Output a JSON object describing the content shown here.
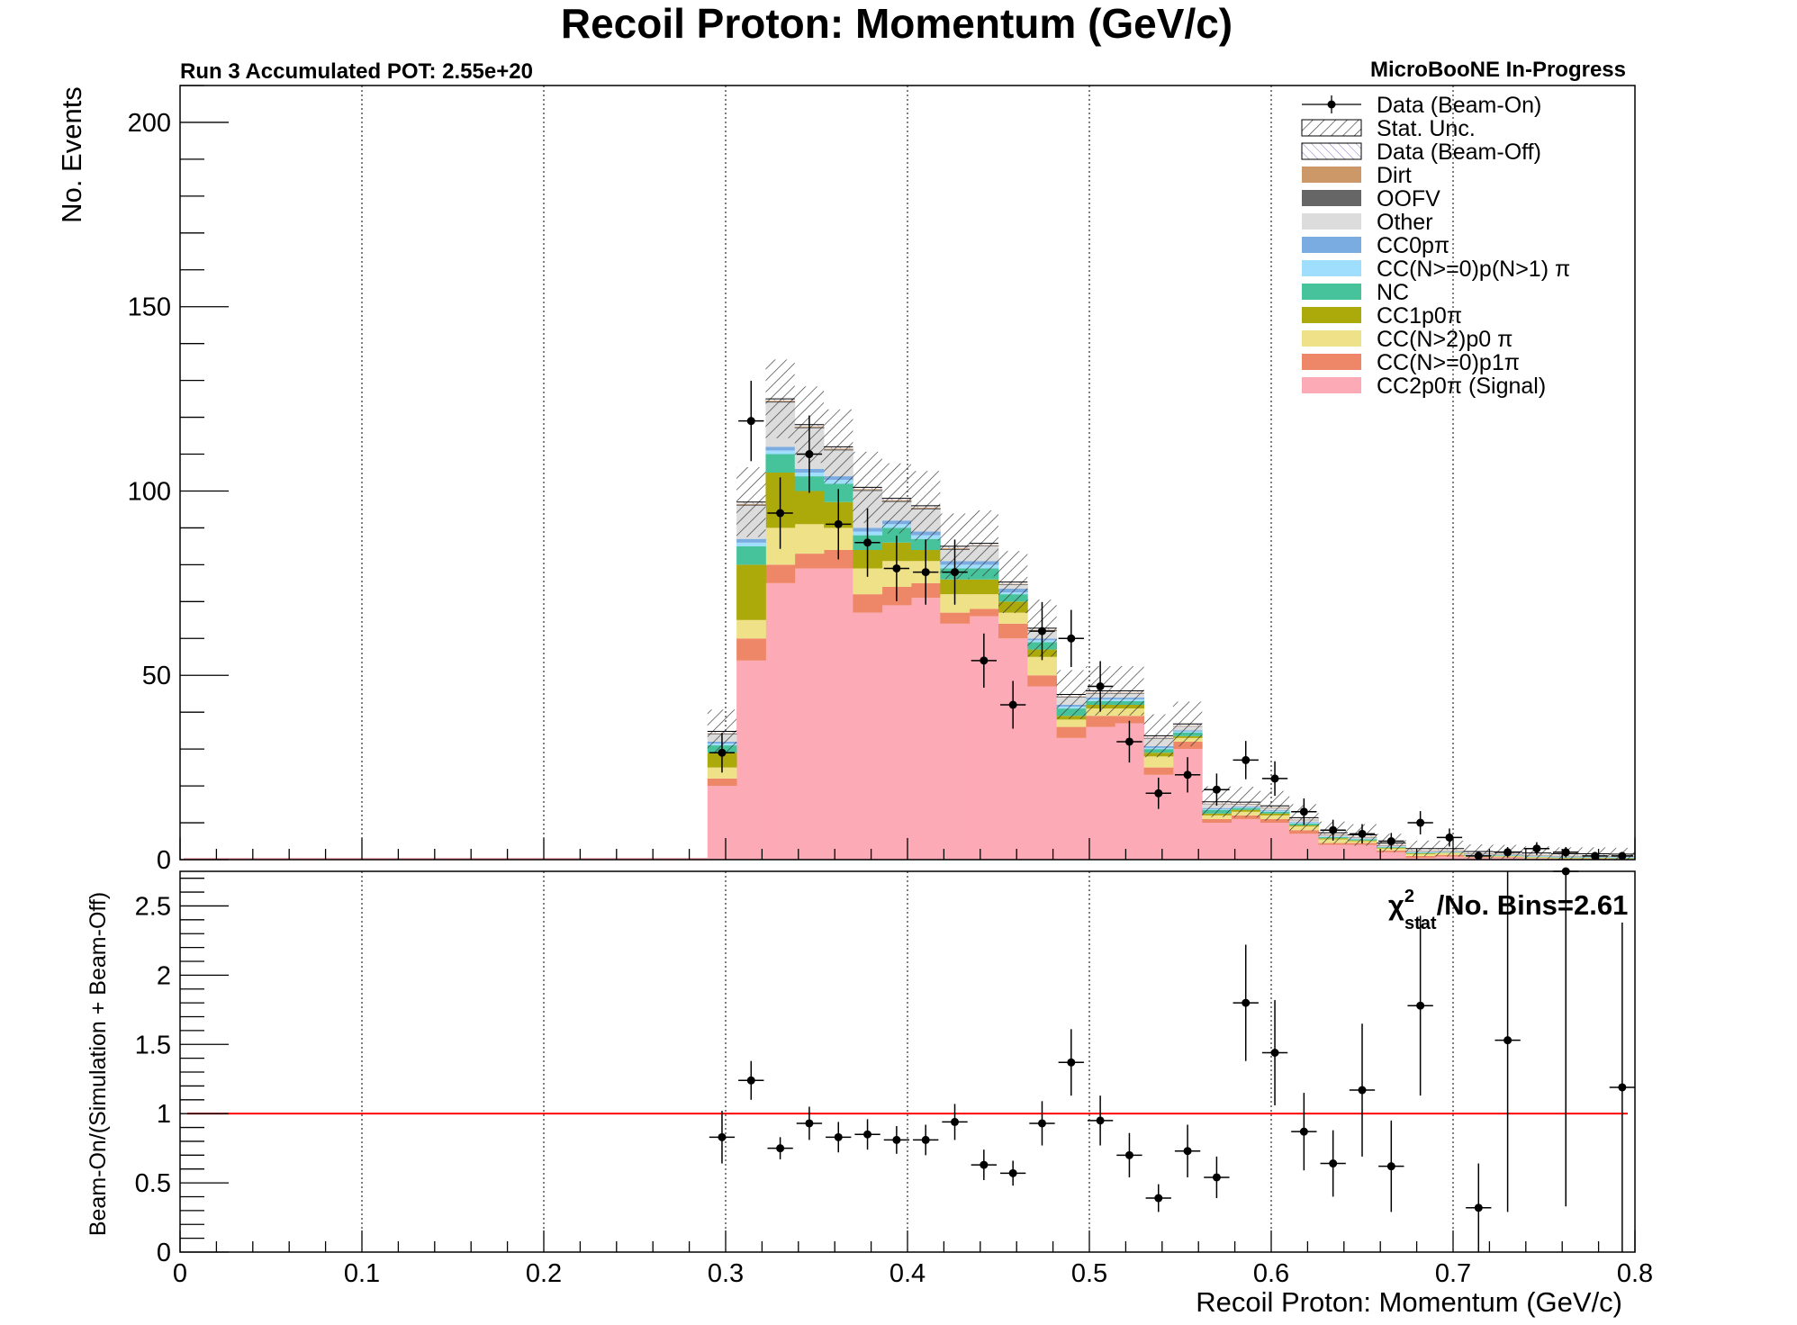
{
  "colors": {
    "signal": "#fdaab7",
    "cc_n0p1pi": "#ee8768",
    "cc_n2p0pi": "#eee187",
    "cc1p0pi": "#aca90a",
    "nc": "#47c39c",
    "cc_n0p_n1pi": "#9fdefd",
    "cc0ppi": "#7aabe1",
    "other": "#dcdcdc",
    "oofv": "#666666",
    "dirt": "#cd9868",
    "beam_off": "#b1a0d8",
    "data": "#000000",
    "unity_line": "#ff0000"
  },
  "header": {
    "title": "Recoil Proton: Momentum (GeV/c)",
    "run_label": "Run 3 Accumulated POT: 2.55e+20",
    "experiment_label": "MicroBooNE In-Progress"
  },
  "chi2": {
    "chi": "χ",
    "sup": "2",
    "sub": "stat",
    "text": "/No. Bins=2.61"
  },
  "legend": [
    {
      "label": "Data (Beam-On)",
      "style": "data"
    },
    {
      "label": "Stat. Unc.",
      "style": "hatch"
    },
    {
      "label": "Data (Beam-Off)",
      "style": "beamoff"
    },
    {
      "label": "Dirt",
      "style": "fill",
      "color_key": "dirt"
    },
    {
      "label": "OOFV",
      "style": "fill",
      "color_key": "oofv"
    },
    {
      "label": "Other",
      "style": "fill",
      "color_key": "other"
    },
    {
      "label": "CC0pπ",
      "style": "fill",
      "color_key": "cc0ppi"
    },
    {
      "label": "CC(N>=0)p(N>1) π",
      "style": "fill",
      "color_key": "cc_n0p_n1pi"
    },
    {
      "label": "NC",
      "style": "fill",
      "color_key": "nc"
    },
    {
      "label": "CC1p0π",
      "style": "fill",
      "color_key": "cc1p0pi"
    },
    {
      "label": "CC(N>2)p0 π",
      "style": "fill",
      "color_key": "cc_n2p0pi"
    },
    {
      "label": "CC(N>=0)p1π",
      "style": "fill",
      "color_key": "cc_n0p1pi"
    },
    {
      "label": "CC2p0π (Signal)",
      "style": "fill",
      "color_key": "signal"
    }
  ],
  "chart_data": [
    {
      "type": "bar",
      "stacked": true,
      "title": "Recoil Proton: Momentum (GeV/c)",
      "xlabel": "",
      "ylabel": "No. Events",
      "xlim": [
        0,
        0.8
      ],
      "ylim": [
        0,
        210
      ],
      "x_ticks": [
        0,
        0.1,
        0.2,
        0.3,
        0.4,
        0.5,
        0.6,
        0.7,
        0.8
      ],
      "y_ticks": [
        0,
        50,
        100,
        150,
        200
      ],
      "grid": "vertical dotted",
      "legend_position": "top-right",
      "bin_edges": [
        0.29,
        0.306,
        0.322,
        0.338,
        0.354,
        0.37,
        0.386,
        0.402,
        0.418,
        0.434,
        0.45,
        0.466,
        0.482,
        0.498,
        0.514,
        0.53,
        0.546,
        0.562,
        0.578,
        0.594,
        0.61,
        0.626,
        0.642,
        0.658,
        0.674,
        0.69,
        0.706,
        0.722,
        0.738,
        0.754,
        0.77,
        0.786,
        0.8
      ],
      "series": [
        {
          "name": "CC2p0π (Signal)",
          "color_key": "signal",
          "values": [
            20,
            54,
            75,
            79,
            79,
            67,
            69,
            71,
            64,
            66,
            60,
            47,
            33,
            36,
            37,
            23,
            30,
            10,
            11,
            10,
            7,
            4,
            4,
            2,
            0.5,
            0.8,
            0.5,
            0.5,
            0.3,
            0.2,
            0.2,
            0.1
          ]
        },
        {
          "name": "CC(N>=0)p1π",
          "color_key": "cc_n0p1pi",
          "values": [
            2,
            6,
            5,
            4,
            5,
            5,
            5,
            4,
            3,
            2,
            4,
            3,
            3,
            3,
            2,
            2,
            2,
            1,
            1,
            1,
            1,
            0.5,
            0.5,
            0.5,
            0.5,
            0.5,
            0.2,
            0.2,
            0.1,
            0.1,
            0.1,
            0.1
          ]
        },
        {
          "name": "CC(N>2)p0 π",
          "color_key": "cc_n2p0pi",
          "values": [
            3,
            5,
            10,
            8,
            6,
            7,
            7,
            6,
            5,
            4,
            3,
            5,
            2,
            2,
            2,
            3,
            1,
            1,
            1,
            1,
            1,
            1,
            0.5,
            0.5,
            0.5,
            0.5,
            0.3,
            0.2,
            0.2,
            0.1,
            0.1,
            0.1
          ]
        },
        {
          "name": "CC1p0π",
          "color_key": "cc1p0pi",
          "values": [
            4,
            15,
            15,
            9,
            7,
            5,
            5,
            3,
            4,
            4,
            3,
            2,
            1,
            1,
            1,
            1,
            0.5,
            0.5,
            0.5,
            0.5,
            0.3,
            0.3,
            0.2,
            0.2,
            0.2,
            0.1,
            0.1,
            0.1,
            0.1,
            0.1,
            0.1,
            0.1
          ]
        },
        {
          "name": "NC",
          "color_key": "nc",
          "values": [
            2,
            5,
            5,
            4,
            5,
            4,
            4,
            3,
            3,
            3,
            2,
            2,
            2,
            1,
            1,
            1,
            1,
            1,
            0.5,
            0.5,
            0.5,
            0.3,
            0.3,
            0.2,
            0.2,
            0.1,
            0.1,
            0.1,
            0.1,
            0.1,
            0.1,
            0.1
          ]
        },
        {
          "name": "CC(N>=0)p(N>1) π",
          "color_key": "cc_n0p_n1pi",
          "values": [
            0.5,
            1,
            1,
            1,
            1,
            1,
            1,
            1,
            1,
            1,
            0.5,
            0.5,
            0.5,
            0.5,
            0.5,
            0.3,
            0.3,
            0.2,
            0.2,
            0.2,
            0.2,
            0.1,
            0.1,
            0.1,
            0.1,
            0.1,
            0.1,
            0.1,
            0.1,
            0.1,
            0.1,
            0.1
          ]
        },
        {
          "name": "CC0pπ",
          "color_key": "cc0ppi",
          "values": [
            0.5,
            1,
            1,
            1,
            1,
            1,
            1,
            1,
            1,
            1,
            1,
            0.5,
            0.5,
            0.5,
            0.5,
            0.5,
            0.3,
            0.3,
            0.2,
            0.2,
            0.2,
            0.1,
            0.1,
            0.1,
            0.1,
            0.1,
            0.1,
            0.1,
            0.1,
            0.1,
            0.1,
            0.1
          ]
        },
        {
          "name": "Other",
          "color_key": "other",
          "values": [
            2,
            9,
            12,
            11,
            7,
            10,
            5,
            6,
            3,
            4,
            1,
            2,
            2,
            1,
            1,
            2,
            1,
            1,
            0.5,
            0.5,
            0.5,
            0.3,
            0.3,
            0.2,
            0.2,
            0.1,
            0.1,
            0.1,
            0.1,
            0.1,
            0.1,
            0.1
          ]
        },
        {
          "name": "OOFV",
          "color_key": "oofv",
          "values": [
            0.2,
            0.3,
            0.3,
            0.3,
            0.3,
            0.3,
            0.3,
            0.3,
            0.3,
            0.2,
            0.2,
            0.2,
            0.2,
            0.2,
            0.2,
            0.2,
            0.1,
            0.1,
            0.1,
            0.1,
            0.1,
            0.1,
            0.1,
            0.1,
            0.1,
            0.1,
            0.1,
            0.1,
            0.1,
            0.1,
            0.1,
            0.1
          ]
        },
        {
          "name": "Dirt",
          "color_key": "dirt",
          "values": [
            0.1,
            0.2,
            0.2,
            0.2,
            0.2,
            0.2,
            0.2,
            0.2,
            0.2,
            0.1,
            0.1,
            0.1,
            0.1,
            0.1,
            0.1,
            0.1,
            0.1,
            0.1,
            0.1,
            0.1,
            0.1,
            0.1,
            0.1,
            0.1,
            0.1,
            0.1,
            0.1,
            0.1,
            0.1,
            0.1,
            0.1,
            0.1
          ]
        },
        {
          "name": "Data (Beam-Off)",
          "color_key": "beam_off",
          "values": [
            0.5,
            0.5,
            0.5,
            0.5,
            0.5,
            0.5,
            0.5,
            0.5,
            0.5,
            0.5,
            0.5,
            0.5,
            0.5,
            0.5,
            0.5,
            0.5,
            0.5,
            0.5,
            0.5,
            0.5,
            0.5,
            0.5,
            0.5,
            0.5,
            0.5,
            0.5,
            0.5,
            0.5,
            0.5,
            0.5,
            0.5,
            0.5
          ]
        }
      ],
      "data_beam_on": {
        "name": "Data (Beam-On)",
        "values": [
          29,
          119,
          94,
          110,
          91,
          86,
          79,
          78,
          78,
          54,
          42,
          62,
          60,
          47,
          32,
          18,
          23,
          19,
          27,
          22,
          13,
          8,
          7,
          5,
          10,
          6,
          1,
          2,
          3,
          2,
          1,
          1
        ]
      }
    },
    {
      "type": "scatter",
      "xlabel": "Recoil Proton: Momentum (GeV/c)",
      "ylabel": "Beam-On/(Simulation + Beam-Off)",
      "xlim": [
        0,
        0.8
      ],
      "ylim": [
        0,
        2.75
      ],
      "x_ticks": [
        0,
        0.1,
        0.2,
        0.3,
        0.4,
        0.5,
        0.6,
        0.7,
        0.8
      ],
      "x_tick_labels": [
        "0",
        "0.1",
        "0.2",
        "0.3",
        "0.4",
        "0.5",
        "0.6",
        "0.7",
        "0.8"
      ],
      "y_ticks": [
        0,
        0.5,
        1,
        1.5,
        2,
        2.5
      ],
      "y_tick_labels": [
        "0",
        "0.5",
        "1",
        "1.5",
        "2",
        "2.5"
      ],
      "reference_line": 1,
      "x": [
        0.298,
        0.314,
        0.33,
        0.346,
        0.362,
        0.378,
        0.394,
        0.41,
        0.426,
        0.442,
        0.458,
        0.474,
        0.49,
        0.506,
        0.522,
        0.538,
        0.554,
        0.57,
        0.586,
        0.602,
        0.618,
        0.634,
        0.65,
        0.666,
        0.682,
        0.714,
        0.73,
        0.762,
        0.793
      ],
      "y": [
        0.83,
        1.24,
        0.75,
        0.93,
        0.83,
        0.85,
        0.81,
        0.81,
        0.94,
        0.63,
        0.57,
        0.93,
        1.37,
        0.95,
        0.7,
        0.39,
        0.73,
        0.54,
        1.8,
        1.44,
        0.87,
        0.64,
        1.17,
        0.62,
        1.78,
        0.32,
        1.53,
        2.75,
        1.19
      ],
      "y_err": [
        0.19,
        0.14,
        0.08,
        0.12,
        0.11,
        0.11,
        0.1,
        0.11,
        0.13,
        0.11,
        0.09,
        0.16,
        0.24,
        0.18,
        0.16,
        0.1,
        0.19,
        0.15,
        0.42,
        0.38,
        0.28,
        0.24,
        0.48,
        0.33,
        0.65,
        0.32,
        1.24,
        2.42,
        1.19
      ]
    }
  ]
}
